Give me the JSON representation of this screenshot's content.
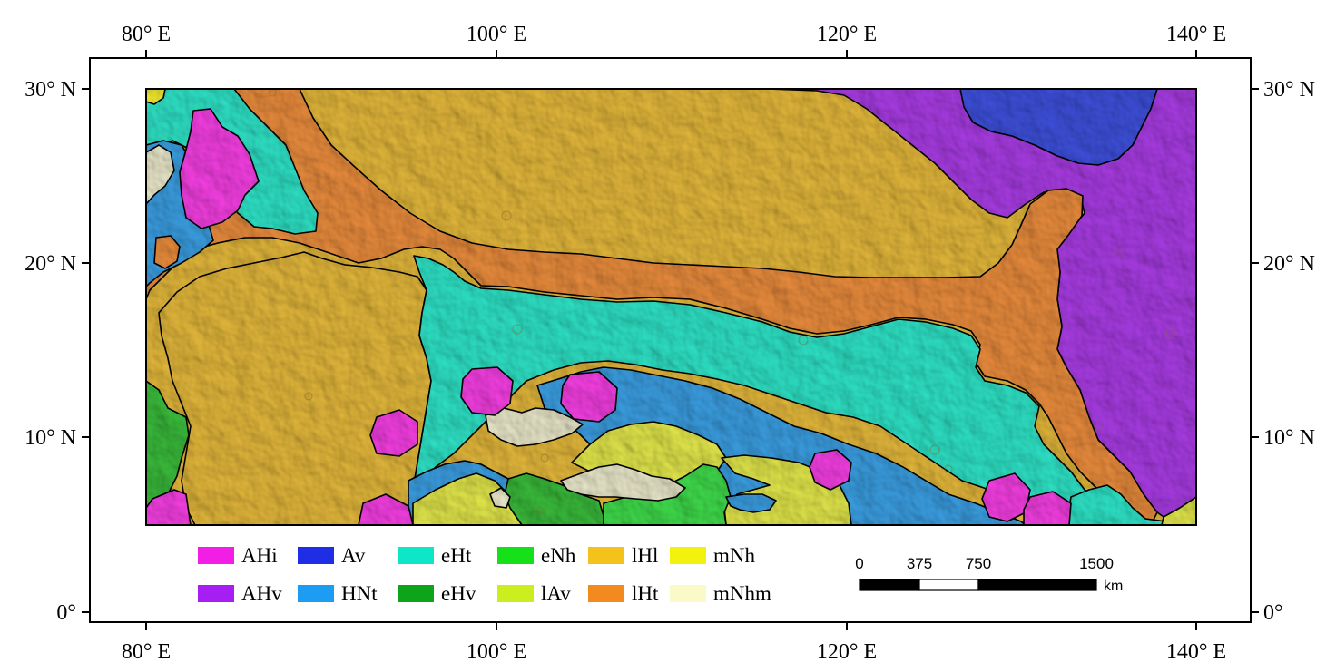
{
  "map": {
    "top_ticks": [
      "80° E",
      "100° E",
      "120° E",
      "140° E"
    ],
    "bottom_ticks": [
      "80° E",
      "100° E",
      "120° E",
      "140° E"
    ],
    "left_ticks": [
      "30° N",
      "20° N",
      "10° N",
      "0°"
    ],
    "right_ticks": [
      "30° N",
      "20° N",
      "10° N",
      "0°"
    ]
  },
  "legend": [
    {
      "code": "AHi",
      "color": "#f21ee6"
    },
    {
      "code": "Av",
      "color": "#1f2ee6"
    },
    {
      "code": "eHt",
      "color": "#0ee6c8"
    },
    {
      "code": "eNh",
      "color": "#16e01a"
    },
    {
      "code": "lHl",
      "color": "#f4c21a"
    },
    {
      "code": "mNh",
      "color": "#f2f20e"
    },
    {
      "code": "AHv",
      "color": "#a61ef2"
    },
    {
      "code": "HNt",
      "color": "#1c9cf2"
    },
    {
      "code": "eHv",
      "color": "#0ea41a"
    },
    {
      "code": "lAv",
      "color": "#cbef1e"
    },
    {
      "code": "lHt",
      "color": "#f28a1e"
    },
    {
      "code": "mNhm",
      "color": "#fafac8"
    }
  ],
  "scalebar": {
    "labels": [
      "0",
      "375",
      "750",
      "1500"
    ],
    "unit": "km"
  }
}
